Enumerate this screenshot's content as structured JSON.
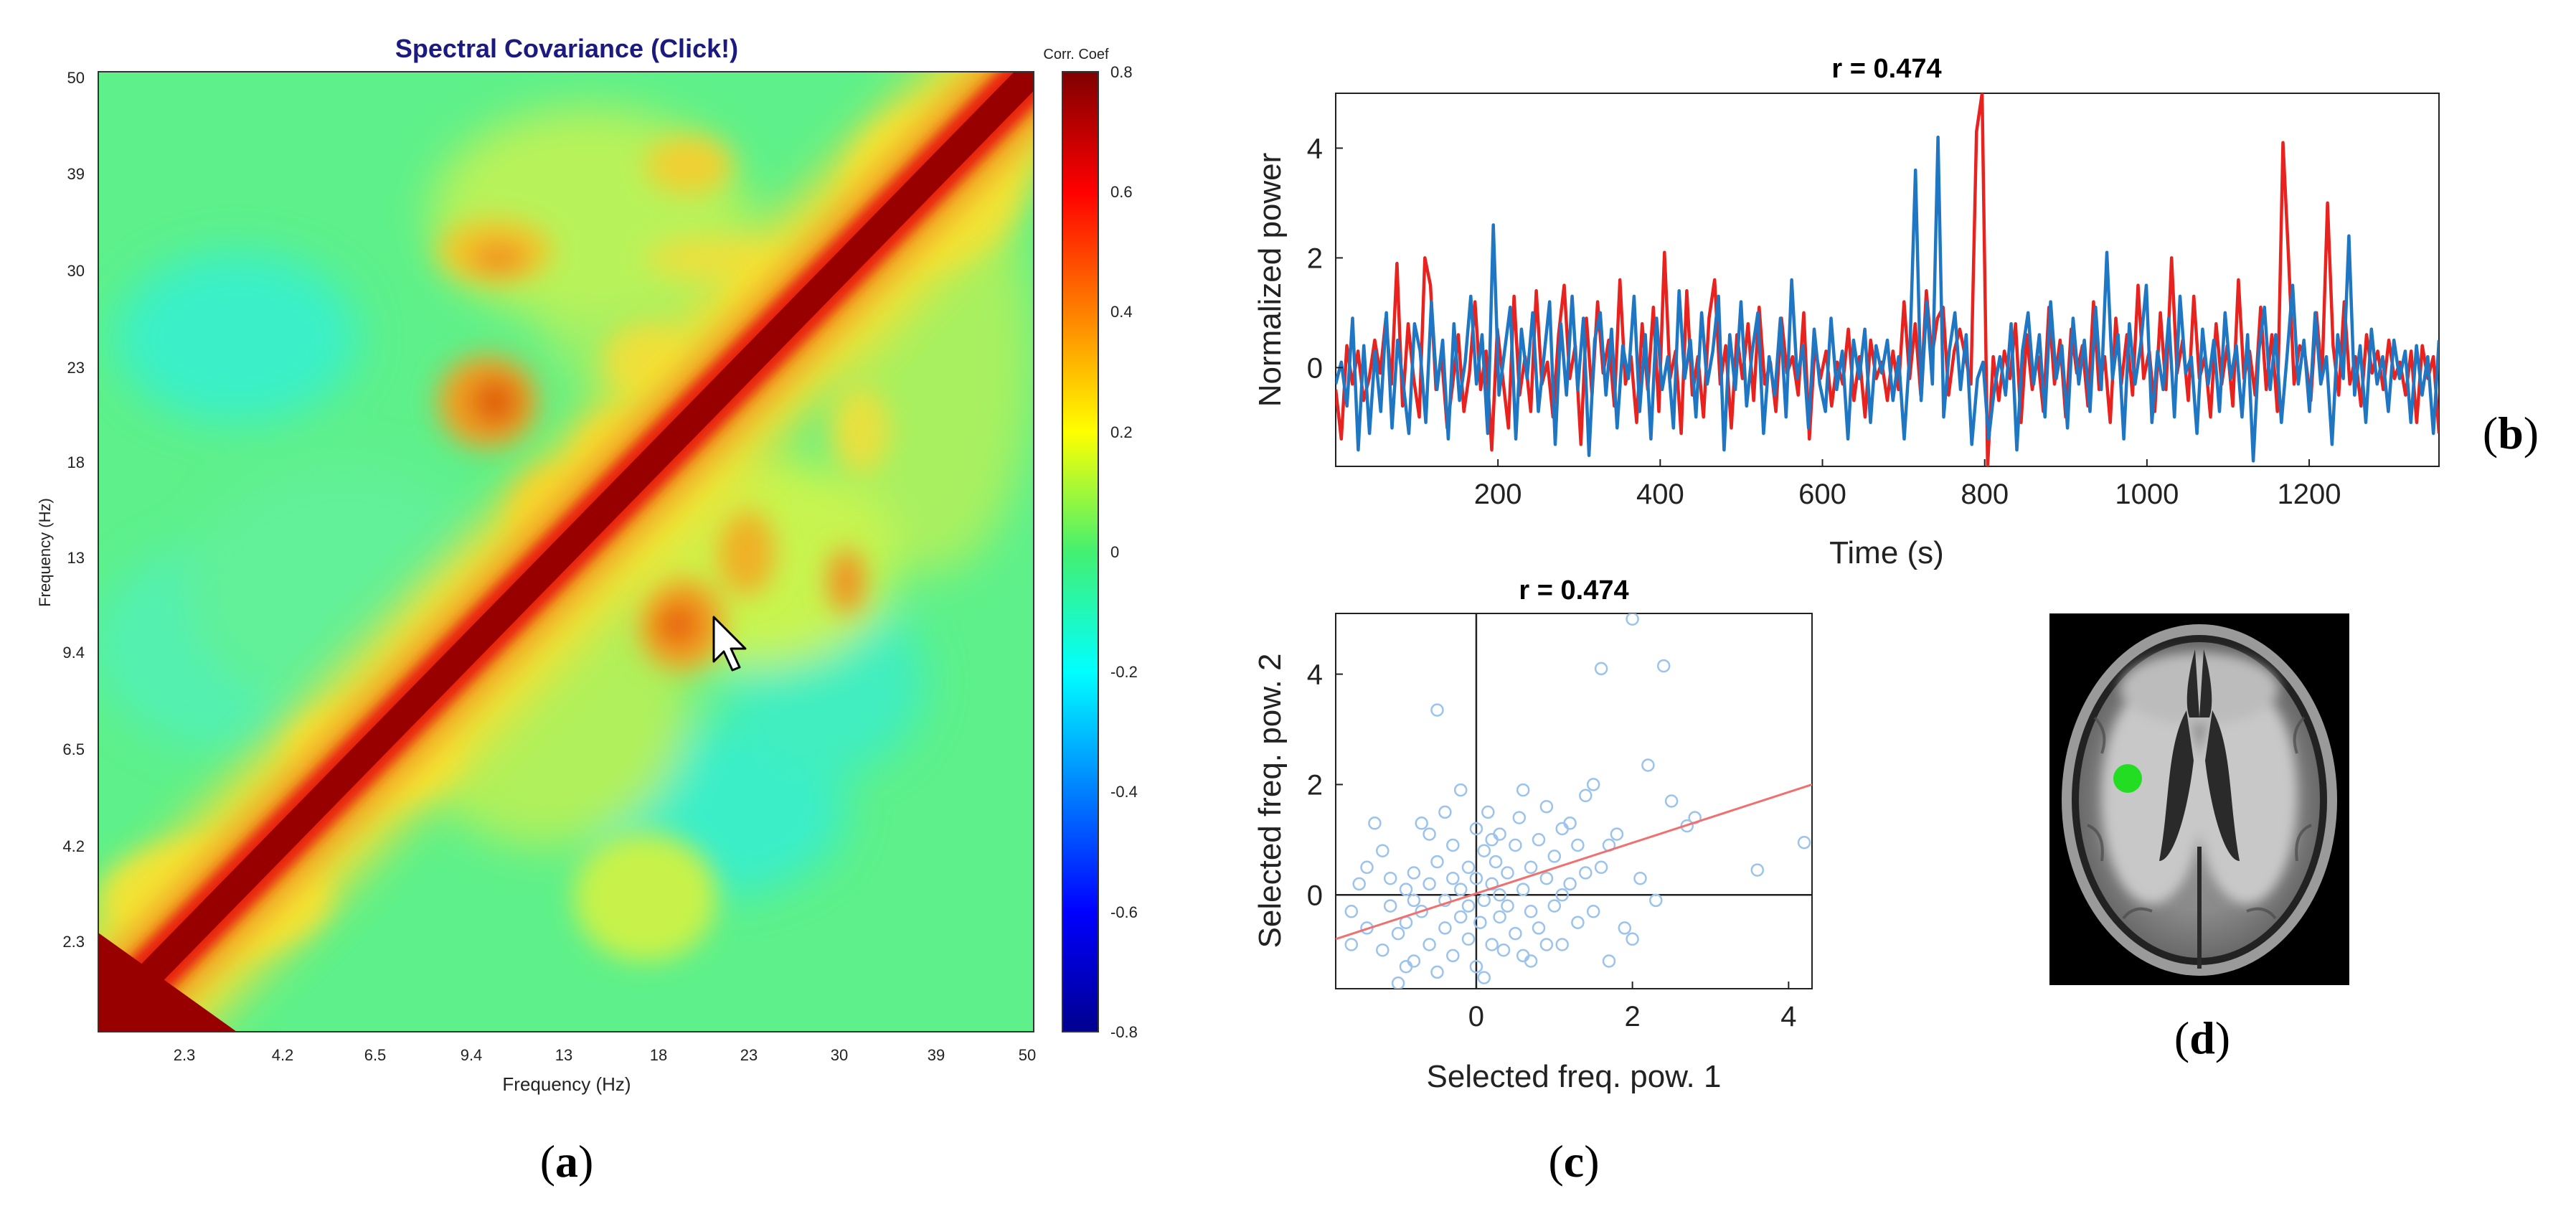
{
  "figure": {
    "panel_labels": {
      "a_open": "(",
      "a_letter": "a",
      "a_close": ")",
      "b_open": "(",
      "b_letter": "b",
      "b_close": ")",
      "c_open": "(",
      "c_letter": "c",
      "c_close": ")",
      "d_open": "(",
      "d_letter": "d",
      "d_close": ")"
    }
  },
  "chart_data": [
    {
      "id": "a",
      "type": "heatmap",
      "title": "Spectral Covariance (Click!)",
      "xlabel": "Frequency (Hz)",
      "ylabel": "Frequency (Hz)",
      "x_ticks": [
        "2.3",
        "4.2",
        "6.5",
        "9.4",
        "13",
        "18",
        "23",
        "30",
        "39",
        "50"
      ],
      "y_ticks": [
        "2.3",
        "4.2",
        "6.5",
        "9.4",
        "13",
        "18",
        "23",
        "30",
        "39",
        "50"
      ],
      "colorbar": {
        "label": "Corr. Coef",
        "ticks": [
          "0.8",
          "0.6",
          "0.4",
          "0.2",
          "0",
          "-0.2",
          "-0.4",
          "-0.6",
          "-0.8"
        ],
        "range": [
          -0.8,
          0.8
        ],
        "colormap": "jet"
      },
      "description_values": {
        "diagonal": 0.8,
        "background": 0.05,
        "blobs": [
          {
            "x": "9.4-13",
            "y": "18-23",
            "value": 0.4
          },
          {
            "x": "18-23",
            "y": "9.4-13",
            "value": 0.4
          },
          {
            "x": "30",
            "y": "9.4-13",
            "value": 0.35
          },
          {
            "x": "9.4-13",
            "y": "30",
            "value": 0.3
          }
        ]
      },
      "cursor": "arrow-pointer"
    },
    {
      "id": "b",
      "type": "line",
      "title": "r = 0.474",
      "xlabel": "Time (s)",
      "ylabel": "Normalized power",
      "x_ticks": [
        "200",
        "400",
        "600",
        "800",
        "1000",
        "1200"
      ],
      "y_ticks": [
        "4",
        "2",
        "0"
      ],
      "xlim": [
        0,
        1360
      ],
      "ylim": [
        -1.8,
        5.0
      ],
      "series": [
        {
          "name": "red",
          "color": "#e8231f",
          "values": [
            -0.4,
            -1.3,
            0.4,
            -0.3,
            0.3,
            -0.6,
            -0.2,
            0.5,
            -0.1,
            0.9,
            -0.3,
            1.9,
            -0.7,
            0.8,
            -0.2,
            -0.9,
            2.0,
            1.5,
            -0.4,
            0.2,
            -1.1,
            -0.3,
            0.6,
            -0.8,
            -0.1,
            1.2,
            -0.4,
            0.3,
            -1.5,
            0.7,
            -0.2,
            -1.1,
            1.3,
            -0.5,
            0.2,
            -0.8,
            1.4,
            -0.3,
            0.1,
            -0.9,
            0.6,
            1.5,
            -0.2,
            0.4,
            -1.4,
            0.9,
            -0.5,
            1.2,
            -0.1,
            0.5,
            -0.7,
            1.6,
            -0.3,
            0.2,
            -1.0,
            0.8,
            -0.4,
            1.1,
            -0.8,
            2.1,
            -0.2,
            0.3,
            -1.2,
            1.4,
            -0.5,
            0.2,
            -0.9,
            0.9,
            1.6,
            -0.3,
            0.4,
            -1.1,
            0.6,
            -0.2,
            0.8,
            -0.6,
            1.1,
            -0.3,
            0.1,
            -0.8,
            0.9,
            -0.1,
            0.2,
            -0.5,
            1.0,
            -1.3,
            0.4,
            -0.2,
            0.3,
            -0.7,
            0.1,
            -0.3,
            0.7,
            -0.6,
            0.2,
            -0.9,
            0.5,
            -0.2,
            0.1,
            -0.6,
            0.3,
            -0.4,
            1.2,
            -0.2,
            0.8,
            -0.5,
            1.4,
            0.2,
            0.9,
            1.1,
            -0.5,
            0.3,
            0.7,
            0.2,
            -0.3,
            4.3,
            5.0,
            -1.8,
            0.2,
            -0.6,
            0.3,
            -0.2,
            0.8,
            -1.0,
            0.6,
            -0.4,
            0.2,
            -0.8,
            1.1,
            -0.3,
            0.5,
            -0.9,
            0.7,
            -0.1,
            0.4,
            -0.7,
            1.2,
            -0.4,
            0.2,
            -1.0,
            0.9,
            -0.3,
            0.6,
            -0.5,
            1.5,
            -0.2,
            0.3,
            -0.8,
            1.0,
            -0.4,
            2.0,
            -0.1,
            0.5,
            -0.6,
            1.3,
            -0.2,
            0.2,
            -0.9,
            0.8,
            -0.3,
            0.4,
            -0.7,
            1.6,
            -0.2,
            0.3,
            -0.5,
            1.1,
            -0.4,
            0.6,
            -0.8,
            4.1,
            2.0,
            -0.3,
            0.4,
            0.2,
            -0.6,
            1.0,
            -0.2,
            3.0,
            0.4,
            -0.5,
            1.2,
            -0.3,
            0.2,
            -0.7,
            0.6,
            -0.1,
            0.3,
            -0.4,
            0.5,
            -0.2,
            0.1,
            -0.5,
            0.3,
            -1.0,
            0.4,
            -0.2,
            0.2,
            -1.2
          ]
        },
        {
          "name": "blue",
          "color": "#1f77c4",
          "values": [
            -0.3,
            0.1,
            -0.7,
            0.9,
            -1.5,
            0.4,
            -1.2,
            0.3,
            -0.8,
            1.0,
            -1.1,
            0.5,
            -0.3,
            -1.2,
            0.8,
            0.3,
            -1.0,
            1.2,
            -0.4,
            0.5,
            -1.3,
            0.8,
            -0.6,
            0.1,
            1.3,
            -0.3,
            0.6,
            -1.2,
            2.6,
            -0.5,
            0.3,
            1.1,
            -1.3,
            0.7,
            -0.2,
            1.0,
            -0.8,
            0.2,
            1.2,
            -1.4,
            0.8,
            -0.5,
            1.3,
            -0.4,
            0.9,
            -1.6,
            0.5,
            1.0,
            -0.5,
            0.7,
            -1.1,
            0.4,
            -0.2,
            1.3,
            -0.8,
            0.6,
            -1.3,
            0.9,
            -0.4,
            0.2,
            -1.1,
            1.4,
            -0.2,
            0.5,
            -0.9,
            1.0,
            -0.3,
            0.3,
            1.3,
            -1.5,
            0.6,
            -0.4,
            1.2,
            -0.7,
            0.3,
            1.0,
            -1.2,
            0.2,
            -0.5,
            0.9,
            -0.9,
            1.6,
            -0.2,
            0.4,
            -1.1,
            0.7,
            -0.3,
            -0.8,
            0.9,
            -0.4,
            0.3,
            -1.3,
            0.5,
            -0.2,
            0.7,
            -1.0,
            0.4,
            -0.1,
            0.5,
            -0.6,
            0.2,
            -1.3,
            0.3,
            3.6,
            -0.6,
            1.2,
            -0.3,
            4.2,
            -0.9,
            0.3,
            1.0,
            -0.4,
            0.6,
            -1.4,
            -0.2,
            0.1,
            -1.3,
            -0.4,
            0.2,
            -0.5,
            0.8,
            -1.5,
            0.3,
            1.0,
            -0.3,
            0.6,
            -0.9,
            1.2,
            -0.2,
            0.4,
            -1.1,
            0.9,
            -0.3,
            0.5,
            -0.8,
            1.1,
            -0.4,
            2.1,
            -0.2,
            0.6,
            -1.3,
            0.8,
            -0.3,
            0.4,
            1.5,
            -1.0,
            0.3,
            -0.4,
            0.9,
            -0.9,
            1.3,
            -0.1,
            0.2,
            -1.2,
            0.7,
            -0.3,
            0.5,
            -0.8,
            1.0,
            -0.2,
            0.4,
            -0.9,
            0.6,
            -1.7,
            0.3,
            1.1,
            -0.4,
            0.6,
            -1.0,
            0.2,
            1.5,
            -0.3,
            0.5,
            -0.8,
            1.0,
            -0.3,
            0.2,
            -1.4,
            0.6,
            -0.2,
            2.4,
            -0.5,
            0.4,
            -1.0,
            0.7,
            -0.3,
            0.2,
            -0.8,
            0.5,
            -0.2,
            0.3,
            -1.0,
            0.4,
            -0.5,
            0.2,
            -1.2,
            0.5
          ]
        }
      ]
    },
    {
      "id": "c",
      "type": "scatter",
      "title": "r = 0.474",
      "xlabel": "Selected freq. pow. 1",
      "ylabel": "Selected freq. pow. 2",
      "x_ticks": [
        "0",
        "2",
        "4"
      ],
      "y_ticks": [
        "4",
        "2",
        "0"
      ],
      "xlim": [
        -1.8,
        4.3
      ],
      "ylim": [
        -1.7,
        5.1
      ],
      "marker_color": "#9cc3ec",
      "fit_line": {
        "color": "#f07070",
        "x": [
          -1.8,
          4.3
        ],
        "y": [
          -0.8,
          2.0
        ]
      },
      "points": [
        [
          -1.6,
          -0.3
        ],
        [
          -1.5,
          0.2
        ],
        [
          -1.4,
          -0.6
        ],
        [
          -1.3,
          1.3
        ],
        [
          -1.2,
          -1.0
        ],
        [
          -1.1,
          -0.2
        ],
        [
          -1.1,
          0.3
        ],
        [
          -1.0,
          -0.7
        ],
        [
          -1.0,
          -1.6
        ],
        [
          -0.9,
          0.1
        ],
        [
          -0.9,
          -0.5
        ],
        [
          -0.8,
          -1.2
        ],
        [
          -0.8,
          0.4
        ],
        [
          -0.7,
          -0.3
        ],
        [
          -0.7,
          1.3
        ],
        [
          -0.6,
          -0.9
        ],
        [
          -0.6,
          0.2
        ],
        [
          -0.5,
          -1.4
        ],
        [
          -0.5,
          0.6
        ],
        [
          -0.5,
          3.35
        ],
        [
          -0.4,
          -0.1
        ],
        [
          -0.4,
          -0.6
        ],
        [
          -0.3,
          0.9
        ],
        [
          -0.3,
          -1.1
        ],
        [
          -0.2,
          0.1
        ],
        [
          -0.2,
          -0.4
        ],
        [
          -0.2,
          1.9
        ],
        [
          -0.1,
          -0.8
        ],
        [
          -0.1,
          0.5
        ],
        [
          -0.1,
          -0.2
        ],
        [
          0.0,
          1.2
        ],
        [
          0.0,
          -1.3
        ],
        [
          0.0,
          0.3
        ],
        [
          0.05,
          -0.5
        ],
        [
          0.1,
          0.8
        ],
        [
          0.1,
          -0.1
        ],
        [
          0.15,
          1.5
        ],
        [
          0.2,
          -0.9
        ],
        [
          0.2,
          0.2
        ],
        [
          0.25,
          0.6
        ],
        [
          0.3,
          -0.4
        ],
        [
          0.3,
          1.1
        ],
        [
          0.35,
          -1.0
        ],
        [
          0.4,
          0.4
        ],
        [
          0.4,
          -0.2
        ],
        [
          0.5,
          0.9
        ],
        [
          0.5,
          -0.7
        ],
        [
          0.55,
          1.4
        ],
        [
          0.6,
          0.1
        ],
        [
          0.6,
          -1.1
        ],
        [
          0.7,
          0.5
        ],
        [
          0.7,
          -0.3
        ],
        [
          0.8,
          1.0
        ],
        [
          0.8,
          -0.6
        ],
        [
          0.9,
          0.3
        ],
        [
          0.9,
          1.6
        ],
        [
          1.0,
          -0.2
        ],
        [
          1.0,
          0.7
        ],
        [
          1.1,
          -0.9
        ],
        [
          1.1,
          1.2
        ],
        [
          1.2,
          0.2
        ],
        [
          1.3,
          0.9
        ],
        [
          1.3,
          -0.5
        ],
        [
          1.4,
          1.8
        ],
        [
          1.4,
          0.4
        ],
        [
          1.5,
          -0.3
        ],
        [
          1.5,
          2.0
        ],
        [
          1.6,
          0.5
        ],
        [
          1.6,
          4.1
        ],
        [
          1.7,
          -1.2
        ],
        [
          1.8,
          1.1
        ],
        [
          1.9,
          -0.6
        ],
        [
          2.0,
          5.0
        ],
        [
          2.1,
          0.3
        ],
        [
          2.2,
          2.35
        ],
        [
          2.3,
          -0.1
        ],
        [
          2.4,
          4.15
        ],
        [
          2.5,
          1.7
        ],
        [
          2.7,
          1.25
        ],
        [
          2.8,
          1.4
        ],
        [
          3.6,
          0.45
        ],
        [
          4.2,
          0.95
        ],
        [
          -1.6,
          -0.9
        ],
        [
          -1.2,
          0.8
        ],
        [
          -0.9,
          -1.3
        ],
        [
          -0.6,
          1.1
        ],
        [
          -0.3,
          0.3
        ],
        [
          0.1,
          -1.5
        ],
        [
          0.3,
          0.0
        ],
        [
          0.6,
          1.9
        ],
        [
          0.9,
          -0.9
        ],
        [
          1.2,
          1.3
        ],
        [
          1.7,
          0.9
        ],
        [
          2.0,
          -0.8
        ],
        [
          -1.4,
          0.5
        ],
        [
          -0.8,
          -0.1
        ],
        [
          -0.4,
          1.5
        ],
        [
          0.2,
          1.0
        ],
        [
          0.7,
          -1.2
        ],
        [
          1.1,
          0.0
        ]
      ]
    },
    {
      "id": "d",
      "type": "image",
      "subject": "axial brain MRI slice with green marker",
      "marker_color": "#22dd22"
    }
  ]
}
